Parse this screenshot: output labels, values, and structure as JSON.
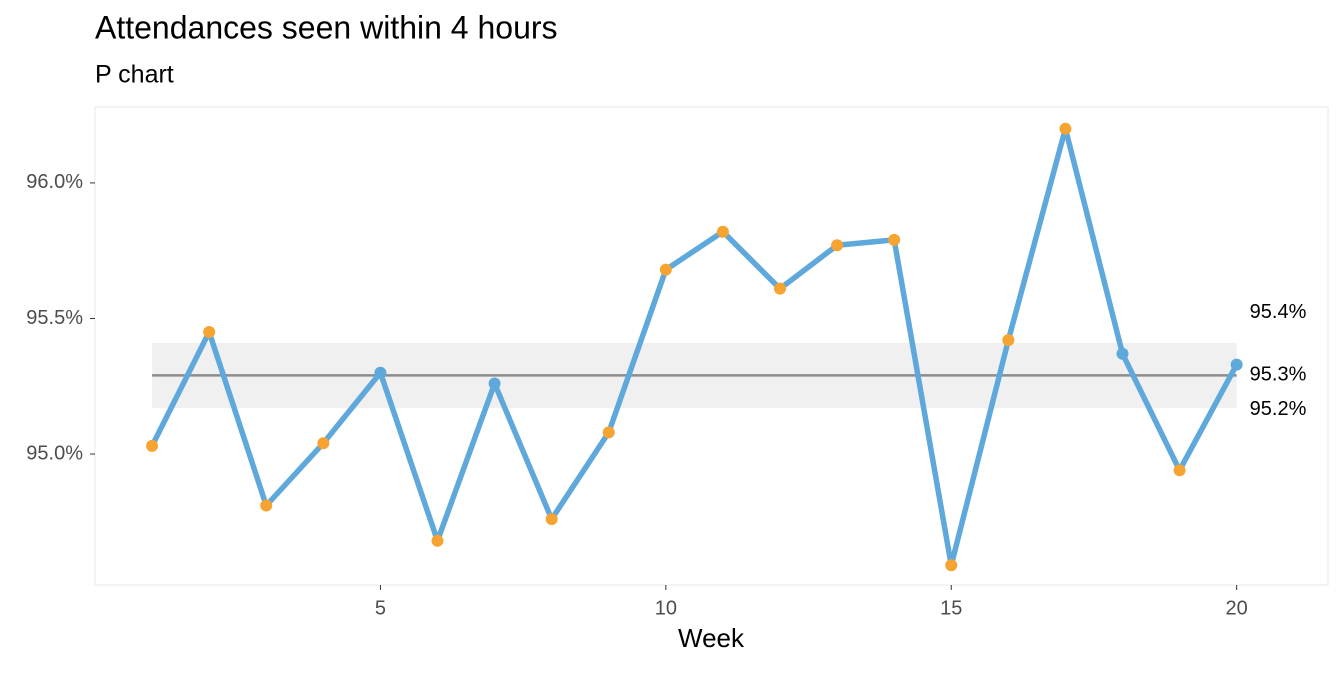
{
  "chart_data": {
    "type": "line",
    "title": "Attendances seen within 4 hours",
    "subtitle": "P chart",
    "x_label": "Week",
    "x": [
      1,
      2,
      3,
      4,
      5,
      6,
      7,
      8,
      9,
      10,
      11,
      12,
      13,
      14,
      15,
      16,
      17,
      18,
      19,
      20
    ],
    "values": [
      95.03,
      95.45,
      94.81,
      95.04,
      95.3,
      94.68,
      95.26,
      94.76,
      95.08,
      95.68,
      95.82,
      95.61,
      95.77,
      95.79,
      94.59,
      95.42,
      96.2,
      95.37,
      94.94,
      95.33
    ],
    "color": "#5fa8db",
    "point_colors": [
      "#f6a431",
      "#f6a431",
      "#f6a431",
      "#f6a431",
      "#5fa8db",
      "#f6a431",
      "#5fa8db",
      "#f6a431",
      "#f6a431",
      "#f6a431",
      "#f6a431",
      "#f6a431",
      "#f6a431",
      "#f6a431",
      "#f6a431",
      "#f6a431",
      "#f6a431",
      "#5fa8db",
      "#f6a431",
      "#5fa8db"
    ],
    "upper_limit": {
      "value": 95.41,
      "label": "95.4%"
    },
    "center_line": {
      "value": 95.29,
      "label": "95.3%"
    },
    "lower_limit": {
      "value": 95.17,
      "label": "95.2%"
    },
    "limit_color": "#f0f0f0",
    "center_color": "#8c8c8c",
    "xlim": [
      0,
      21.6
    ],
    "ylim": [
      94.517,
      96.28
    ],
    "xticks": [
      5,
      10,
      15,
      20
    ],
    "yticks": [
      {
        "value": 95,
        "label": "95.0%"
      },
      {
        "value": 95.5,
        "label": "95.5%"
      },
      {
        "value": 96,
        "label": "96.0%"
      }
    ],
    "grid": false
  }
}
